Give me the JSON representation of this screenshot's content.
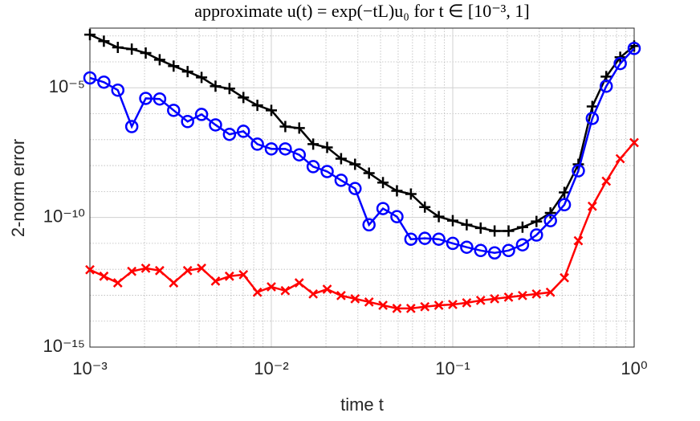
{
  "chart_data": {
    "type": "line",
    "title": "approximate u(t) = exp(−tL)u₀ for t ∈ [10⁻³, 1]",
    "xlabel": "time t",
    "ylabel": "2-norm error",
    "xscale": "log",
    "yscale": "log",
    "grid": true,
    "xlim": [
      0.001,
      1
    ],
    "ylim": [
      1e-15,
      0.002
    ],
    "xticks": [
      {
        "value": 0.001,
        "label": "10⁻³"
      },
      {
        "value": 0.01,
        "label": "10⁻²"
      },
      {
        "value": 0.1,
        "label": "10⁻¹"
      },
      {
        "value": 1,
        "label": "10⁰"
      }
    ],
    "yticks": [
      {
        "value": 1e-15,
        "label": "10⁻¹⁵"
      },
      {
        "value": 1e-10,
        "label": "10⁻¹⁰"
      },
      {
        "value": 1e-05,
        "label": "10⁻⁵"
      }
    ],
    "xminorticks": [
      0.002,
      0.003,
      0.004,
      0.005,
      0.006,
      0.007,
      0.008,
      0.009,
      0.02,
      0.03,
      0.04,
      0.05,
      0.06,
      0.07,
      0.08,
      0.09,
      0.2,
      0.3,
      0.4,
      0.5,
      0.6,
      0.7,
      0.8,
      0.9
    ],
    "yminorticks": [
      1e-14,
      1e-13,
      1e-12,
      1e-11,
      1e-09,
      1e-08,
      1e-07,
      1e-06,
      0.0001,
      0.001
    ],
    "x": [
      0.001,
      0.001194,
      0.001425,
      0.001701,
      0.002031,
      0.002424,
      0.002894,
      0.003455,
      0.004125,
      0.004924,
      0.005878,
      0.007017,
      0.008377,
      0.01,
      0.01194,
      0.01425,
      0.01701,
      0.02031,
      0.02424,
      0.02894,
      0.03455,
      0.04125,
      0.04924,
      0.05878,
      0.07017,
      0.08377,
      0.1,
      0.1194,
      0.1425,
      0.1701,
      0.2031,
      0.2424,
      0.2894,
      0.3455,
      0.4125,
      0.4924,
      0.5878,
      0.7017,
      0.8377,
      1
    ],
    "series": [
      {
        "color": "#000000",
        "marker": "plus",
        "values": [
          0.00112,
          0.00063,
          0.00036,
          0.00031,
          0.00022,
          0.00012,
          6.9e-05,
          4.2e-05,
          2.5e-05,
          1.15e-05,
          9.3e-06,
          4.2e-06,
          2.1e-06,
          1.35e-06,
          3.2e-07,
          2.8e-07,
          6.7e-08,
          5e-08,
          1.85e-08,
          1.12e-08,
          5.1e-09,
          2.2e-09,
          1.06e-09,
          8e-10,
          2.5e-10,
          1.07e-10,
          7.5e-11,
          5.2e-11,
          3.9e-11,
          3e-11,
          3e-11,
          4.2e-11,
          7e-11,
          1.5e-10,
          9.2e-10,
          1.12e-08,
          1.9e-06,
          2.7e-05,
          0.00015,
          0.00041
        ]
      },
      {
        "color": "#0000ff",
        "marker": "circle",
        "values": [
          2.4e-05,
          1.65e-05,
          8.1e-06,
          3.2e-07,
          3.9e-06,
          3.7e-06,
          1.35e-06,
          5e-07,
          9.4e-07,
          3.7e-07,
          1.6e-07,
          2.1e-07,
          6.7e-08,
          4.4e-08,
          4.4e-08,
          2.6e-08,
          9.1e-09,
          5.9e-09,
          2.7e-09,
          1.3e-09,
          5.2e-11,
          2.2e-10,
          1.07e-10,
          1.45e-11,
          1.56e-11,
          1.45e-11,
          1e-11,
          7.1e-12,
          5.3e-12,
          4.3e-12,
          5.3e-12,
          8.8e-12,
          2.1e-11,
          7.5e-11,
          3.1e-10,
          6.3e-09,
          6.6e-07,
          1.15e-05,
          8.6e-05,
          0.00033
        ]
      },
      {
        "color": "#ff0000",
        "marker": "x",
        "values": [
          9.6e-13,
          5.4e-13,
          3e-13,
          8.3e-13,
          1.1e-12,
          8.9e-13,
          3e-13,
          8.9e-13,
          1.1e-12,
          3.5e-13,
          5.4e-13,
          6.2e-13,
          1.3e-13,
          2.1e-13,
          1.5e-13,
          3e-13,
          1.12e-13,
          1.7e-13,
          9.7e-14,
          7.3e-14,
          5.5e-14,
          4.1e-14,
          3.1e-14,
          3.1e-14,
          3.6e-14,
          4.1e-14,
          4.4e-14,
          5.1e-14,
          6.3e-14,
          7.3e-14,
          8.4e-14,
          9.7e-14,
          1.12e-13,
          1.3e-13,
          4.7e-13,
          1.26e-11,
          2.7e-10,
          2.5e-09,
          1.85e-08,
          7.7e-08
        ]
      }
    ]
  }
}
